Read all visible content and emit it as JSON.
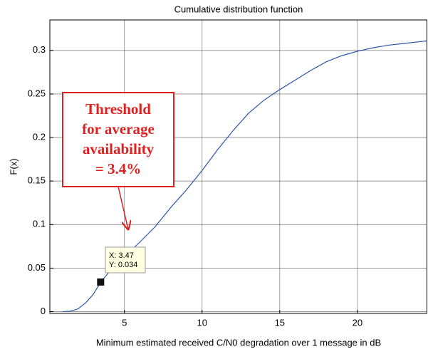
{
  "chart_data": {
    "type": "line",
    "title": "Cumulative distribution function",
    "xlabel": "Minimum estimated received C/N0 degradation over 1 message in dB",
    "ylabel": "F(x)",
    "xlim": [
      0.2,
      24.5
    ],
    "ylim": [
      -0.002,
      0.335
    ],
    "xticks": [
      5,
      10,
      15,
      20
    ],
    "yticks": [
      0,
      0.05,
      0.1,
      0.15,
      0.2,
      0.25,
      0.3
    ],
    "grid": true,
    "series": [
      {
        "name": "F(x)",
        "color": "#2b55a8",
        "x": [
          1.0,
          1.5,
          2,
          2.5,
          3,
          3.47,
          4,
          5,
          6,
          7,
          8,
          9,
          10,
          11,
          12,
          13,
          14,
          15,
          16,
          17,
          18,
          19,
          20,
          21,
          22,
          23,
          24,
          24.5
        ],
        "values": [
          0,
          0.0005,
          0.003,
          0.01,
          0.02,
          0.034,
          0.045,
          0.063,
          0.08,
          0.098,
          0.12,
          0.14,
          0.162,
          0.186,
          0.208,
          0.228,
          0.243,
          0.255,
          0.266,
          0.277,
          0.287,
          0.294,
          0.299,
          0.303,
          0.306,
          0.308,
          0.31,
          0.311
        ]
      }
    ],
    "datatip": {
      "x": 3.47,
      "y": 0.034,
      "labels": [
        "X: 3.47",
        "Y: 0.034"
      ]
    },
    "annotation": {
      "lines": [
        "Threshold",
        "for average",
        "availability",
        "= 3.4%"
      ],
      "color": "#e0201f"
    }
  }
}
